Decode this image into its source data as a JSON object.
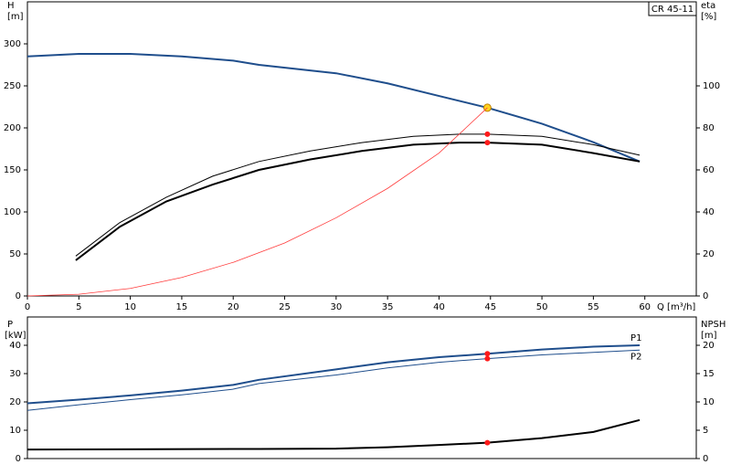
{
  "chart_data": [
    {
      "type": "line",
      "annotation": "CR 45-11",
      "ylabel": [
        "H",
        "[m]"
      ],
      "y2label": [
        "eta",
        "[%]"
      ],
      "xlabel": "Q [m³/h]",
      "xlim": [
        0,
        65
      ],
      "xticks": [
        0,
        5,
        10,
        15,
        20,
        25,
        30,
        35,
        40,
        45,
        50,
        55,
        60
      ],
      "ylim": [
        0,
        350
      ],
      "yticks": [
        0,
        50,
        100,
        150,
        200,
        250,
        300
      ],
      "y2lim": [
        0,
        140
      ],
      "y2ticks": [
        0,
        20,
        40,
        60,
        80,
        100
      ],
      "operating_point": 44.7,
      "series": [
        {
          "color": "#1f4e8c",
          "linewidth": 2,
          "x": [
            0,
            5,
            10,
            15,
            20,
            22.5,
            30,
            35,
            40,
            44.7,
            50,
            55,
            59.5
          ],
          "values": [
            285,
            288,
            288,
            285,
            280,
            275,
            265,
            253,
            238,
            224,
            205,
            183,
            160
          ],
          "point_style": "yellow"
        },
        {
          "color": "#000000",
          "linewidth": 1,
          "axis": "y2",
          "x": [
            4.7,
            9,
            13.5,
            18,
            22.5,
            27.5,
            32.5,
            37.5,
            42,
            44.7,
            50,
            55,
            59.5
          ],
          "values": [
            19,
            35,
            47,
            57,
            64,
            69,
            73,
            76,
            77,
            77,
            76,
            72,
            67
          ]
        },
        {
          "color": "#000000",
          "linewidth": 2,
          "axis": "y2",
          "x": [
            4.7,
            9,
            13.5,
            18,
            22.5,
            27.5,
            32.5,
            37.5,
            42,
            44.7,
            50,
            55,
            59.5
          ],
          "values": [
            17,
            33,
            45,
            53,
            60,
            65,
            69,
            72,
            73,
            73,
            72,
            68,
            64
          ]
        },
        {
          "color": "#ff3b3b",
          "linewidth": 0.8,
          "x": [
            0,
            5,
            10,
            15,
            20,
            25,
            30,
            35,
            40,
            44.7
          ],
          "values": [
            0,
            2,
            9,
            22,
            40,
            63,
            93,
            128,
            170,
            224
          ],
          "point_style": "none"
        }
      ]
    },
    {
      "type": "line",
      "ylabel": [
        "P",
        "[kW]"
      ],
      "y2label": [
        "NPSH",
        "[m]"
      ],
      "xlim": [
        0,
        65
      ],
      "ylim": [
        0,
        50
      ],
      "yticks": [
        0,
        10,
        20,
        30,
        40
      ],
      "y2lim": [
        0,
        25
      ],
      "y2ticks": [
        0,
        5,
        10,
        15,
        20
      ],
      "operating_point": 44.7,
      "series": [
        {
          "name": "P1",
          "label_pos": "above",
          "color": "#1f4e8c",
          "linewidth": 2,
          "x": [
            0,
            5,
            10,
            15,
            20,
            22.5,
            30,
            35,
            40,
            44.7,
            50,
            55,
            59.5
          ],
          "values": [
            19.5,
            20.8,
            22.3,
            24,
            26,
            27.8,
            31.5,
            34,
            35.8,
            37,
            38.5,
            39.5,
            40
          ]
        },
        {
          "name": "P2",
          "label_pos": "below",
          "color": "#1f4e8c",
          "linewidth": 1,
          "x": [
            0,
            5,
            10,
            15,
            20,
            22.5,
            30,
            35,
            40,
            44.7,
            50,
            55,
            59.5
          ],
          "values": [
            17,
            19,
            20.8,
            22.5,
            24.5,
            26.5,
            29.5,
            32,
            34,
            35.3,
            36.6,
            37.5,
            38.3
          ]
        },
        {
          "color": "#000000",
          "linewidth": 2,
          "axis": "y2",
          "x": [
            0,
            22.5,
            30,
            35,
            40,
            44.7,
            50,
            55,
            59.5
          ],
          "values": [
            1.6,
            1.7,
            1.75,
            2,
            2.4,
            2.8,
            3.6,
            4.7,
            6.8
          ]
        }
      ]
    }
  ]
}
